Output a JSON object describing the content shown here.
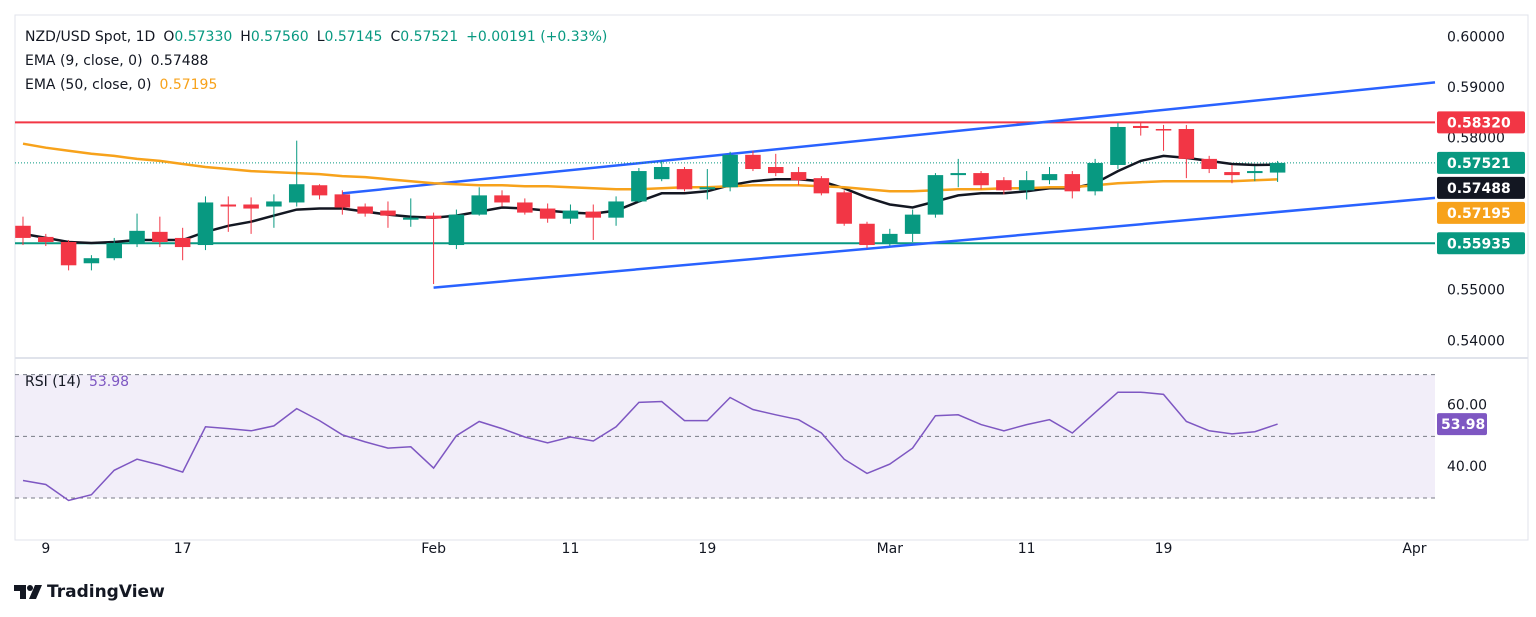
{
  "chart_data": [
    {
      "type": "candlestick",
      "title": "NZD/USD Spot, 1D",
      "ohlc": [
        {
          "label": "O",
          "value": "0.57330"
        },
        {
          "label": "H",
          "value": "0.57560"
        },
        {
          "label": "L",
          "value": "0.57145"
        },
        {
          "label": "C",
          "value": "0.57521"
        }
      ],
      "change": "+0.00191 (+0.33%)",
      "up_color": "#089981",
      "down_color": "#f23645",
      "open": [
        0.5628,
        0.5606,
        0.5596,
        0.5554,
        0.5564,
        0.5594,
        0.5616,
        0.5604,
        0.559,
        0.567,
        0.567,
        0.5666,
        0.5674,
        0.5708,
        0.569,
        0.5666,
        0.5658,
        0.564,
        0.5648,
        0.559,
        0.565,
        0.5688,
        0.5674,
        0.5662,
        0.5642,
        0.5656,
        0.5644,
        0.5676,
        0.572,
        0.574,
        0.57,
        0.5704,
        0.5768,
        0.5744,
        0.5734,
        0.5722,
        0.5694,
        0.5632,
        0.5594,
        0.5612,
        0.565,
        0.5728,
        0.5732,
        0.5718,
        0.5698,
        0.5718,
        0.573,
        0.5696,
        0.5748,
        0.5825,
        0.5819,
        0.5819,
        0.576,
        0.5734,
        0.5732,
        0.5733
      ],
      "high": [
        0.5646,
        0.5612,
        0.56,
        0.557,
        0.5604,
        0.5652,
        0.5646,
        0.5624,
        0.5686,
        0.5686,
        0.5684,
        0.569,
        0.5796,
        0.571,
        0.5698,
        0.5672,
        0.5676,
        0.5682,
        0.5654,
        0.566,
        0.5704,
        0.5698,
        0.5682,
        0.5672,
        0.567,
        0.567,
        0.5686,
        0.5742,
        0.5756,
        0.5744,
        0.574,
        0.5774,
        0.5776,
        0.577,
        0.5744,
        0.5726,
        0.5698,
        0.5636,
        0.5622,
        0.566,
        0.5732,
        0.576,
        0.5736,
        0.5724,
        0.5736,
        0.5744,
        0.5736,
        0.576,
        0.5831,
        0.5833,
        0.5827,
        0.5827,
        0.5766,
        0.5748,
        0.5746,
        0.5756
      ],
      "low": [
        0.559,
        0.5588,
        0.554,
        0.554,
        0.556,
        0.5586,
        0.5586,
        0.556,
        0.558,
        0.5616,
        0.5612,
        0.5624,
        0.5666,
        0.568,
        0.565,
        0.5646,
        0.5624,
        0.5626,
        0.5513,
        0.5582,
        0.5648,
        0.5666,
        0.565,
        0.5634,
        0.5632,
        0.56,
        0.5628,
        0.5674,
        0.5716,
        0.5696,
        0.568,
        0.5696,
        0.5736,
        0.5726,
        0.5708,
        0.5688,
        0.5628,
        0.5584,
        0.5588,
        0.5596,
        0.5644,
        0.5704,
        0.57,
        0.569,
        0.568,
        0.571,
        0.5682,
        0.5688,
        0.574,
        0.5806,
        0.5776,
        0.5722,
        0.5732,
        0.5712,
        0.5716,
        0.57145
      ],
      "close": [
        0.5604,
        0.5596,
        0.555,
        0.5564,
        0.5594,
        0.5618,
        0.5596,
        0.5586,
        0.5674,
        0.5666,
        0.5662,
        0.5676,
        0.571,
        0.5688,
        0.5664,
        0.5652,
        0.5648,
        0.5644,
        0.5642,
        0.565,
        0.5688,
        0.5674,
        0.5654,
        0.5642,
        0.5658,
        0.5644,
        0.5676,
        0.5736,
        0.5744,
        0.57,
        0.5704,
        0.5768,
        0.574,
        0.5732,
        0.5718,
        0.5692,
        0.5632,
        0.559,
        0.5612,
        0.565,
        0.5728,
        0.5732,
        0.5708,
        0.5698,
        0.5718,
        0.573,
        0.5696,
        0.5752,
        0.5823,
        0.5821,
        0.5816,
        0.576,
        0.574,
        0.5728,
        0.5736,
        0.57521
      ],
      "last_label": "0.57521",
      "series": [
        {
          "name": "EMA (9, close, 0)",
          "color": "#131722",
          "value_label": "0.57488",
          "values": [
            0.5612,
            0.5604,
            0.5596,
            0.5594,
            0.5596,
            0.56,
            0.56,
            0.56,
            0.5616,
            0.5628,
            0.5636,
            0.5648,
            0.566,
            0.5662,
            0.5662,
            0.5656,
            0.565,
            0.5646,
            0.5644,
            0.5648,
            0.5656,
            0.5664,
            0.5662,
            0.5658,
            0.5654,
            0.5652,
            0.5658,
            0.5676,
            0.5692,
            0.5692,
            0.5696,
            0.5708,
            0.5716,
            0.572,
            0.572,
            0.5716,
            0.5702,
            0.5684,
            0.567,
            0.5664,
            0.5676,
            0.5688,
            0.5692,
            0.5692,
            0.5696,
            0.5702,
            0.5702,
            0.5712,
            0.5736,
            0.5756,
            0.5766,
            0.5762,
            0.5756,
            0.575,
            0.5748,
            0.57488
          ]
        },
        {
          "name": "EMA (50, close, 0)",
          "color": "#f7a21b",
          "value_label": "0.57195",
          "values": [
            0.579,
            0.5782,
            0.5776,
            0.577,
            0.5766,
            0.576,
            0.5756,
            0.575,
            0.5744,
            0.574,
            0.5736,
            0.5734,
            0.5732,
            0.573,
            0.5726,
            0.5724,
            0.572,
            0.5716,
            0.5712,
            0.571,
            0.5708,
            0.5708,
            0.5706,
            0.5706,
            0.5704,
            0.5702,
            0.57,
            0.57,
            0.5702,
            0.5704,
            0.5704,
            0.5706,
            0.5708,
            0.5708,
            0.5708,
            0.5706,
            0.5704,
            0.57,
            0.5696,
            0.5696,
            0.5698,
            0.57,
            0.57,
            0.5702,
            0.5702,
            0.5704,
            0.5704,
            0.5708,
            0.5712,
            0.5714,
            0.5716,
            0.5716,
            0.5716,
            0.5716,
            0.5718,
            0.57195
          ]
        }
      ],
      "levels": [
        {
          "value": 0.5832,
          "label": "0.58320",
          "color": "#f23645"
        },
        {
          "value": 0.55935,
          "label": "0.55935",
          "color": "#089981"
        }
      ],
      "trendlines": [
        {
          "x": [
            14,
            61.9
          ],
          "y": [
            0.5692,
            0.5911
          ],
          "color": "#2962ff"
        },
        {
          "x": [
            18,
            61.9
          ],
          "y": [
            0.5506,
            0.5683
          ],
          "color": "#2962ff"
        }
      ],
      "xlim": [
        -0.35,
        61.9
      ],
      "xticks": [
        {
          "value": 1,
          "label": "9"
        },
        {
          "value": 7,
          "label": "17"
        },
        {
          "value": 18,
          "label": "Feb"
        },
        {
          "value": 24,
          "label": "11"
        },
        {
          "value": 30,
          "label": "19"
        },
        {
          "value": 38,
          "label": "Mar"
        },
        {
          "value": 44,
          "label": "11"
        },
        {
          "value": 50,
          "label": "19"
        },
        {
          "value": 61,
          "label": "Apr"
        }
      ],
      "ylim": [
        0.5369,
        0.6044
      ],
      "yticks": [
        {
          "value": 0.54,
          "label": "0.54000"
        },
        {
          "value": 0.55,
          "label": "0.55000"
        },
        {
          "value": 0.58,
          "label": "0.58000"
        },
        {
          "value": 0.59,
          "label": "0.59000"
        },
        {
          "value": 0.6,
          "label": "0.60000"
        }
      ],
      "grid": false
    },
    {
      "type": "line",
      "title": "RSI (14)",
      "series": [
        {
          "color": "#7e57c2",
          "value_label": "53.98",
          "values": [
            35.7,
            34.4,
            29.2,
            31.1,
            39.0,
            42.6,
            40.7,
            38.4,
            53.1,
            52.5,
            51.8,
            53.4,
            59.0,
            55.1,
            50.5,
            48.2,
            46.2,
            46.6,
            39.7,
            50.2,
            54.8,
            52.5,
            49.8,
            47.9,
            49.8,
            48.5,
            53.1,
            61.0,
            61.3,
            55.1,
            55.1,
            62.6,
            58.7,
            57.0,
            55.4,
            51.1,
            42.6,
            38.0,
            41.0,
            46.2,
            56.7,
            57.0,
            53.8,
            51.8,
            53.8,
            55.4,
            51.1,
            57.7,
            64.3,
            64.3,
            63.6,
            54.8,
            51.8,
            50.8,
            51.5,
            53.98
          ]
        }
      ],
      "band": [
        30,
        70
      ],
      "midline": 50,
      "ylim": [
        16.4,
        75.4
      ],
      "yticks": [
        {
          "value": 40,
          "label": "40.00"
        },
        {
          "value": 60,
          "label": "60.00"
        }
      ]
    }
  ],
  "footer": "TradingView"
}
